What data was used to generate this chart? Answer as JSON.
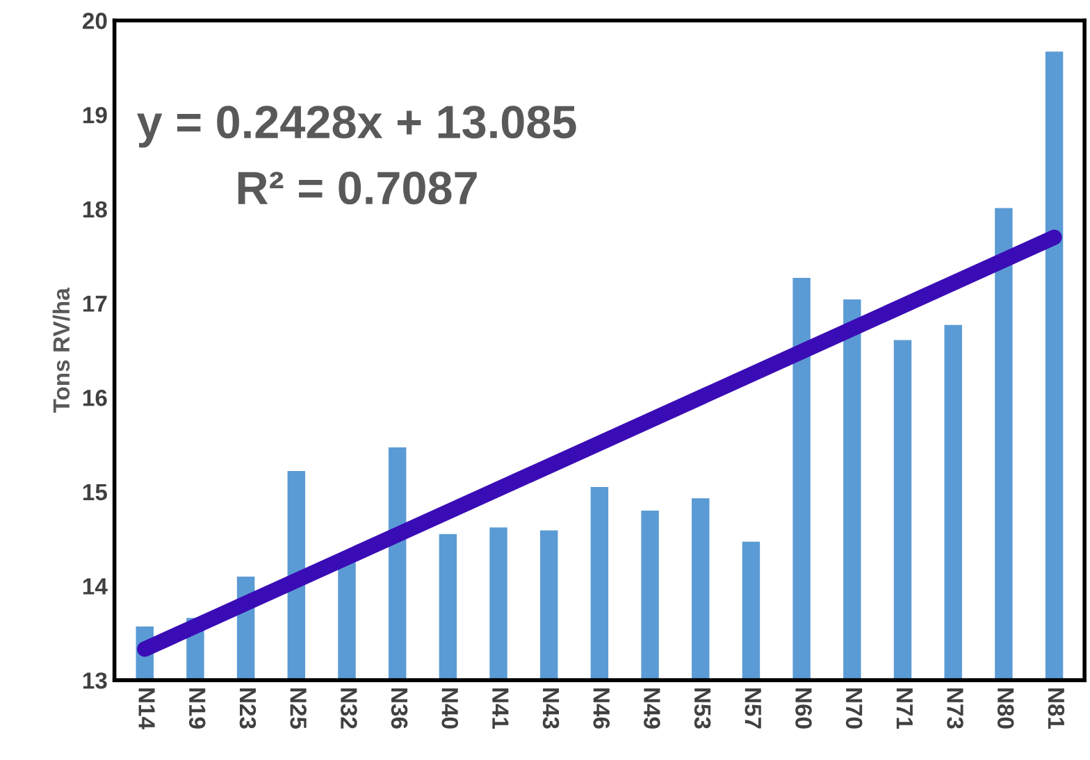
{
  "chart_data": {
    "type": "bar",
    "ylabel": "Tons RV/ha",
    "categories": [
      "N14",
      "N19",
      "N23",
      "N25",
      "N32",
      "N36",
      "N40",
      "N41",
      "N43",
      "N46",
      "N49",
      "N53",
      "N57",
      "N60",
      "N70",
      "N71",
      "N73",
      "N80",
      "N81"
    ],
    "series": [
      {
        "color": "#5b9bd5",
        "values": [
          13.57,
          13.66,
          14.1,
          15.22,
          14.25,
          15.47,
          14.55,
          14.62,
          14.59,
          15.05,
          14.8,
          14.93,
          14.47,
          17.27,
          17.04,
          16.61,
          16.77,
          18.01,
          19.67
        ]
      },
      {
        "type": "line",
        "color": "#3a0cb5",
        "x": [
          "N14",
          "N81"
        ],
        "values": [
          13.33,
          17.7
        ]
      }
    ],
    "ylim": [
      13,
      20
    ],
    "yticks": [
      13,
      14,
      15,
      16,
      17,
      18,
      19,
      20
    ],
    "grid": false,
    "annotations": [
      "y = 0.2428x + 13.085",
      "R² = 0.7087"
    ]
  }
}
